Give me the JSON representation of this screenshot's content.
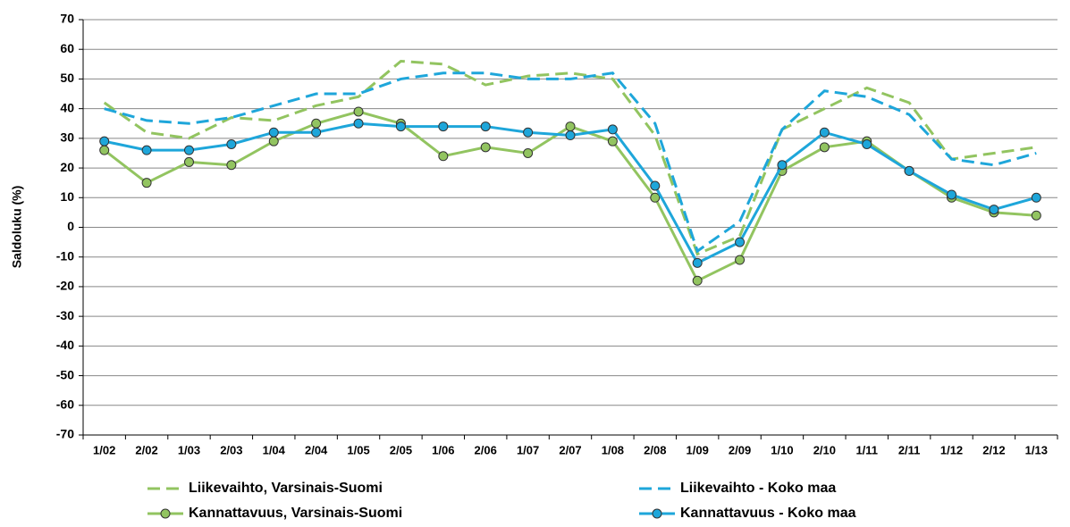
{
  "chart_data": {
    "type": "line",
    "y_label": "Saldoluku (%)",
    "categories": [
      "1/02",
      "2/02",
      "1/03",
      "2/03",
      "1/04",
      "2/04",
      "1/05",
      "2/05",
      "1/06",
      "2/06",
      "1/07",
      "2/07",
      "1/08",
      "2/08",
      "1/09",
      "2/09",
      "1/10",
      "2/10",
      "1/11",
      "2/11",
      "1/12",
      "2/12",
      "1/13"
    ],
    "series": [
      {
        "name": "Liikevaihto, Varsinais-Suomi",
        "color": "#92c460",
        "style": "dashed",
        "marker": false,
        "values": [
          42,
          32,
          30,
          37,
          36,
          41,
          44,
          56,
          55,
          48,
          51,
          52,
          50,
          31,
          -9,
          -3,
          33,
          40,
          47,
          42,
          23,
          25,
          27
        ]
      },
      {
        "name": "Liikevaihto - Koko maa",
        "color": "#1ea6da",
        "style": "dashed",
        "marker": false,
        "values": [
          40,
          36,
          35,
          37,
          41,
          45,
          45,
          50,
          52,
          52,
          50,
          50,
          52,
          35,
          -8,
          2,
          33,
          46,
          44,
          38,
          23,
          21,
          25
        ]
      },
      {
        "name": "Kannattavuus, Varsinais-Suomi",
        "color": "#92c460",
        "style": "solid",
        "marker": true,
        "values": [
          26,
          15,
          22,
          21,
          29,
          35,
          39,
          35,
          24,
          27,
          25,
          34,
          29,
          10,
          -18,
          -11,
          19,
          27,
          29,
          19,
          10,
          5,
          4
        ]
      },
      {
        "name": "Kannattavuus - Koko maa",
        "color": "#1ea6da",
        "style": "solid",
        "marker": true,
        "values": [
          29,
          26,
          26,
          28,
          32,
          32,
          35,
          34,
          34,
          34,
          32,
          31,
          33,
          14,
          -12,
          -5,
          21,
          32,
          28,
          19,
          11,
          6,
          10
        ]
      }
    ],
    "ylim": [
      -70,
      70
    ],
    "yticks": [
      -70,
      -60,
      -50,
      -40,
      -30,
      -20,
      -10,
      0,
      10,
      20,
      30,
      40,
      50,
      60,
      70
    ],
    "grid": true
  }
}
